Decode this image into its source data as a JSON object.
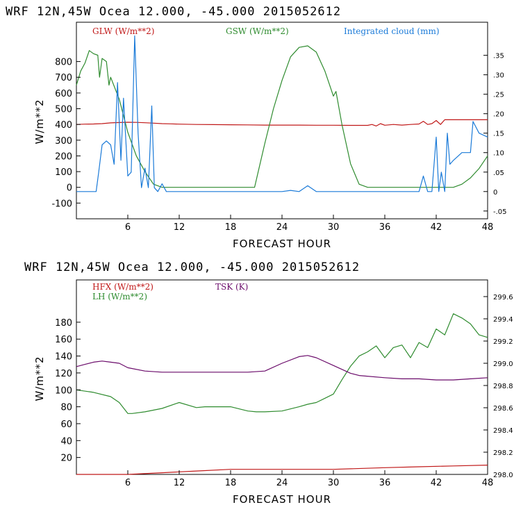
{
  "colors": {
    "glw": "#c01818",
    "gsw": "#2e8b2e",
    "cloud": "#1a7ad8",
    "hfx": "#c01818",
    "lh": "#2e8b2e",
    "tsk": "#6a0a6a"
  },
  "chart_data": [
    {
      "type": "line",
      "title": "WRF   12N,45W Ocea  12.000, -45.000  2015052612",
      "xlabel": "FORECAST HOUR",
      "ylabel": "W/m**2",
      "xlim": [
        0,
        48
      ],
      "ylim": [
        -200,
        1050
      ],
      "y2lim": [
        -0.07,
        0.435
      ],
      "xticks": [
        "6",
        "12",
        "18",
        "24",
        "30",
        "36",
        "42",
        "48"
      ],
      "yticks": [
        "-100",
        "0",
        "100",
        "200",
        "300",
        "400",
        "500",
        "600",
        "700",
        "800"
      ],
      "y2ticks": [
        "-.05",
        "0",
        ".05",
        ".10",
        ".15",
        ".20",
        ".25",
        ".30",
        ".35"
      ],
      "series": [
        {
          "name": "GLW (W/m**2)",
          "axis": "left",
          "x": [
            0,
            1,
            2,
            3,
            4,
            5,
            6,
            7,
            8,
            9,
            10,
            11,
            12,
            14,
            16,
            18,
            20,
            22,
            24,
            26,
            28,
            30,
            32,
            34,
            34.5,
            35,
            35.5,
            36,
            37,
            38,
            39,
            40,
            40.5,
            41,
            41.5,
            42,
            42.5,
            43,
            44,
            45,
            46,
            47,
            48
          ],
          "values": [
            400,
            402,
            403,
            405,
            410,
            412,
            414,
            413,
            411,
            408,
            405,
            404,
            402,
            400,
            399,
            398,
            397,
            396,
            396,
            396,
            395,
            395,
            394,
            394,
            400,
            390,
            405,
            395,
            400,
            396,
            400,
            403,
            420,
            400,
            405,
            425,
            400,
            430,
            430,
            430,
            430,
            430,
            430
          ]
        },
        {
          "name": "GSW (W/m**2)",
          "axis": "left",
          "x": [
            0,
            0.5,
            1,
            1.5,
            2,
            2.5,
            2.7,
            3,
            3.5,
            3.8,
            4,
            5,
            6,
            7,
            8,
            9,
            10,
            12,
            15,
            18,
            20.8,
            22,
            23,
            24,
            25,
            26,
            27,
            28,
            29,
            30,
            30.3,
            31,
            32,
            33,
            34,
            40,
            43,
            44,
            45,
            46,
            47,
            48
          ],
          "values": [
            650,
            740,
            790,
            870,
            850,
            840,
            700,
            820,
            800,
            650,
            700,
            560,
            350,
            200,
            100,
            20,
            0,
            0,
            0,
            0,
            0,
            280,
            500,
            680,
            830,
            890,
            900,
            860,
            740,
            580,
            610,
            400,
            150,
            20,
            0,
            0,
            0,
            0,
            20,
            60,
            120,
            200
          ]
        },
        {
          "name": "Integrated cloud (mm)",
          "axis": "right",
          "x": [
            0,
            1,
            2,
            2.3,
            2.6,
            3,
            3.5,
            4,
            4.4,
            4.8,
            5.2,
            5.5,
            6,
            6.4,
            6.8,
            7.2,
            7.6,
            8,
            8.4,
            8.8,
            9.1,
            9.5,
            10,
            10.5,
            11,
            12,
            15,
            18,
            21,
            24,
            25,
            26,
            27,
            28,
            30,
            33,
            36,
            40,
            40.5,
            41,
            41.5,
            42,
            42.3,
            42.6,
            43,
            43.3,
            43.6,
            44,
            45,
            46,
            46.3,
            47,
            48
          ],
          "values": [
            0,
            0,
            0,
            0,
            0.05,
            0.12,
            0.13,
            0.12,
            0.07,
            0.28,
            0.08,
            0.24,
            0.04,
            0.05,
            0.4,
            0.15,
            0.01,
            0.06,
            0.01,
            0.22,
            0.01,
            0.0,
            0.02,
            0.0,
            0.0,
            0.0,
            0.0,
            0.0,
            0.0,
            0.0,
            0.003,
            0.0,
            0.015,
            0.0,
            0.0,
            0.0,
            0.0,
            0.0,
            0.04,
            0.0,
            0.0,
            0.14,
            0.0,
            0.05,
            0.0,
            0.15,
            0.07,
            0.08,
            0.1,
            0.1,
            0.18,
            0.15,
            0.14
          ]
        }
      ]
    },
    {
      "type": "line",
      "title": "WRF   12N,45W Ocea  12.000, -45.000  2015052612",
      "xlabel": "FORECAST HOUR",
      "ylabel": "W/m**2",
      "xlim": [
        0,
        48
      ],
      "ylim": [
        0,
        230
      ],
      "y2lim": [
        298.0,
        299.75
      ],
      "xticks": [
        "6",
        "12",
        "18",
        "24",
        "30",
        "36",
        "42",
        "48"
      ],
      "yticks": [
        "20",
        "40",
        "60",
        "80",
        "100",
        "120",
        "140",
        "160",
        "180"
      ],
      "y2ticks": [
        "298.0",
        "298.2",
        "298.4",
        "298.6",
        "298.8",
        "299.0",
        "299.2",
        "299.4",
        "299.6"
      ],
      "series": [
        {
          "name": "HFX (W/m**2)",
          "axis": "left",
          "x": [
            0,
            6,
            10,
            14,
            18,
            24,
            30,
            36,
            40,
            44,
            48
          ],
          "values": [
            0,
            0,
            2,
            4,
            6,
            6,
            6,
            8,
            9,
            10,
            11
          ]
        },
        {
          "name": "LH  (W/m**2)",
          "axis": "left",
          "x": [
            0,
            2,
            4,
            5,
            6,
            6.5,
            8,
            10,
            12,
            14,
            15,
            18,
            20,
            21,
            22,
            24,
            26,
            27,
            28,
            29,
            30,
            31,
            32,
            33,
            34,
            35,
            36,
            37,
            38,
            39,
            40,
            41,
            42,
            43,
            44,
            45,
            46,
            47,
            48
          ],
          "values": [
            100,
            97,
            92,
            85,
            72,
            72,
            74,
            78,
            85,
            79,
            80,
            80,
            75,
            74,
            74,
            75,
            80,
            83,
            85,
            90,
            95,
            112,
            128,
            140,
            145,
            152,
            138,
            150,
            153,
            138,
            156,
            150,
            172,
            165,
            190,
            185,
            178,
            165,
            162
          ]
        },
        {
          "name": "TSK (K)",
          "axis": "right",
          "x": [
            0,
            1,
            2,
            3,
            4,
            5,
            6,
            8,
            10,
            12,
            15,
            18,
            20,
            22,
            24,
            26,
            27,
            28,
            30,
            32,
            33,
            36,
            38,
            40,
            42,
            44,
            46,
            48
          ],
          "values": [
            298.97,
            298.99,
            299.01,
            299.02,
            299.01,
            299.0,
            298.96,
            298.93,
            298.92,
            298.92,
            298.92,
            298.92,
            298.92,
            298.93,
            299.0,
            299.06,
            299.07,
            299.05,
            298.98,
            298.91,
            298.89,
            298.87,
            298.86,
            298.86,
            298.85,
            298.85,
            298.86,
            298.87
          ]
        }
      ]
    }
  ]
}
